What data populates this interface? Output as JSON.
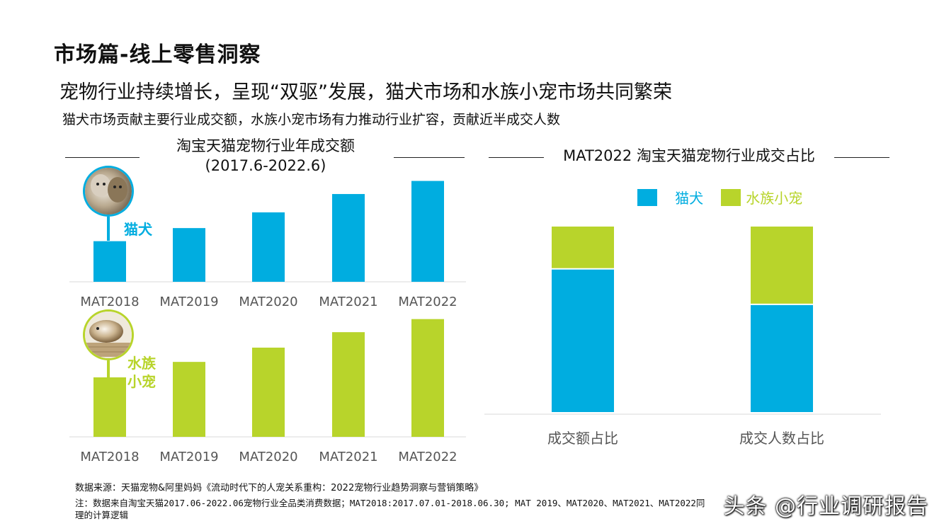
{
  "header": {
    "title": "市场篇-线上零售洞察",
    "headline": "宠物行业持续增长，呈现“双驱”发展，猫犬市场和水族小宠市场共同繁荣",
    "subhead": "猫犬市场贡献主要行业成交额，水族小宠市场有力推动行业扩容，贡献近半成交人数"
  },
  "left_panel": {
    "title_line1": "淘宝天猫宠物行业年成交额",
    "title_line2": "(2017.6-2022.6)",
    "cat_dog_label": "猫犬",
    "aquatic_label_line1": "水族",
    "aquatic_label_line2": "小宠",
    "cat_dog_icon": "cat-dog-photo-icon",
    "aquatic_icon": "guinea-pig-photo-icon"
  },
  "right_panel": {
    "title": "MAT2022 淘宝天猫宠物行业成交占比"
  },
  "colors": {
    "cat_dog": "#00ADE0",
    "aquatic": "#B8D42B"
  },
  "chart_data": [
    {
      "type": "bar",
      "categories": [
        "MAT2018",
        "MAT2019",
        "MAT2020",
        "MAT2021",
        "MAT2022"
      ],
      "values": [
        31,
        41,
        53,
        67,
        77
      ],
      "ylim": [
        0,
        80
      ],
      "grid": false,
      "note": "values relative (no axis or data labels shown)"
    },
    {
      "type": "bar",
      "categories": [
        "MAT2018",
        "MAT2019",
        "MAT2020",
        "MAT2021",
        "MAT2022"
      ],
      "values": [
        50,
        63,
        75,
        88,
        99
      ],
      "ylim": [
        0,
        100
      ],
      "grid": false,
      "note": "values relative (no axis or data labels shown)"
    },
    {
      "type": "bar",
      "stacked": true,
      "categories": [
        "成交额占比",
        "成交人数占比"
      ],
      "series": [
        {
          "name": "猫犬",
          "values": [
            77,
            58
          ]
        },
        {
          "name": "水族小宠",
          "values": [
            23,
            42
          ]
        }
      ],
      "ylim": [
        0,
        100
      ],
      "legend": "top",
      "grid": false
    }
  ],
  "footer": {
    "source": "数据来源：天猫宠物&阿里妈妈《流动时代下的人宠关系重构：2022宠物行业趋势洞察与营销策略》",
    "note": "注：数据来自淘宝天猫2017.06-2022.06宠物行业全品类消费数据；MAT2018:2017.07.01-2018.06.30; MAT 2019、MAT2020、MAT2021、MAT2022同理的计算逻辑",
    "watermark": "头条 @行业调研报告"
  }
}
